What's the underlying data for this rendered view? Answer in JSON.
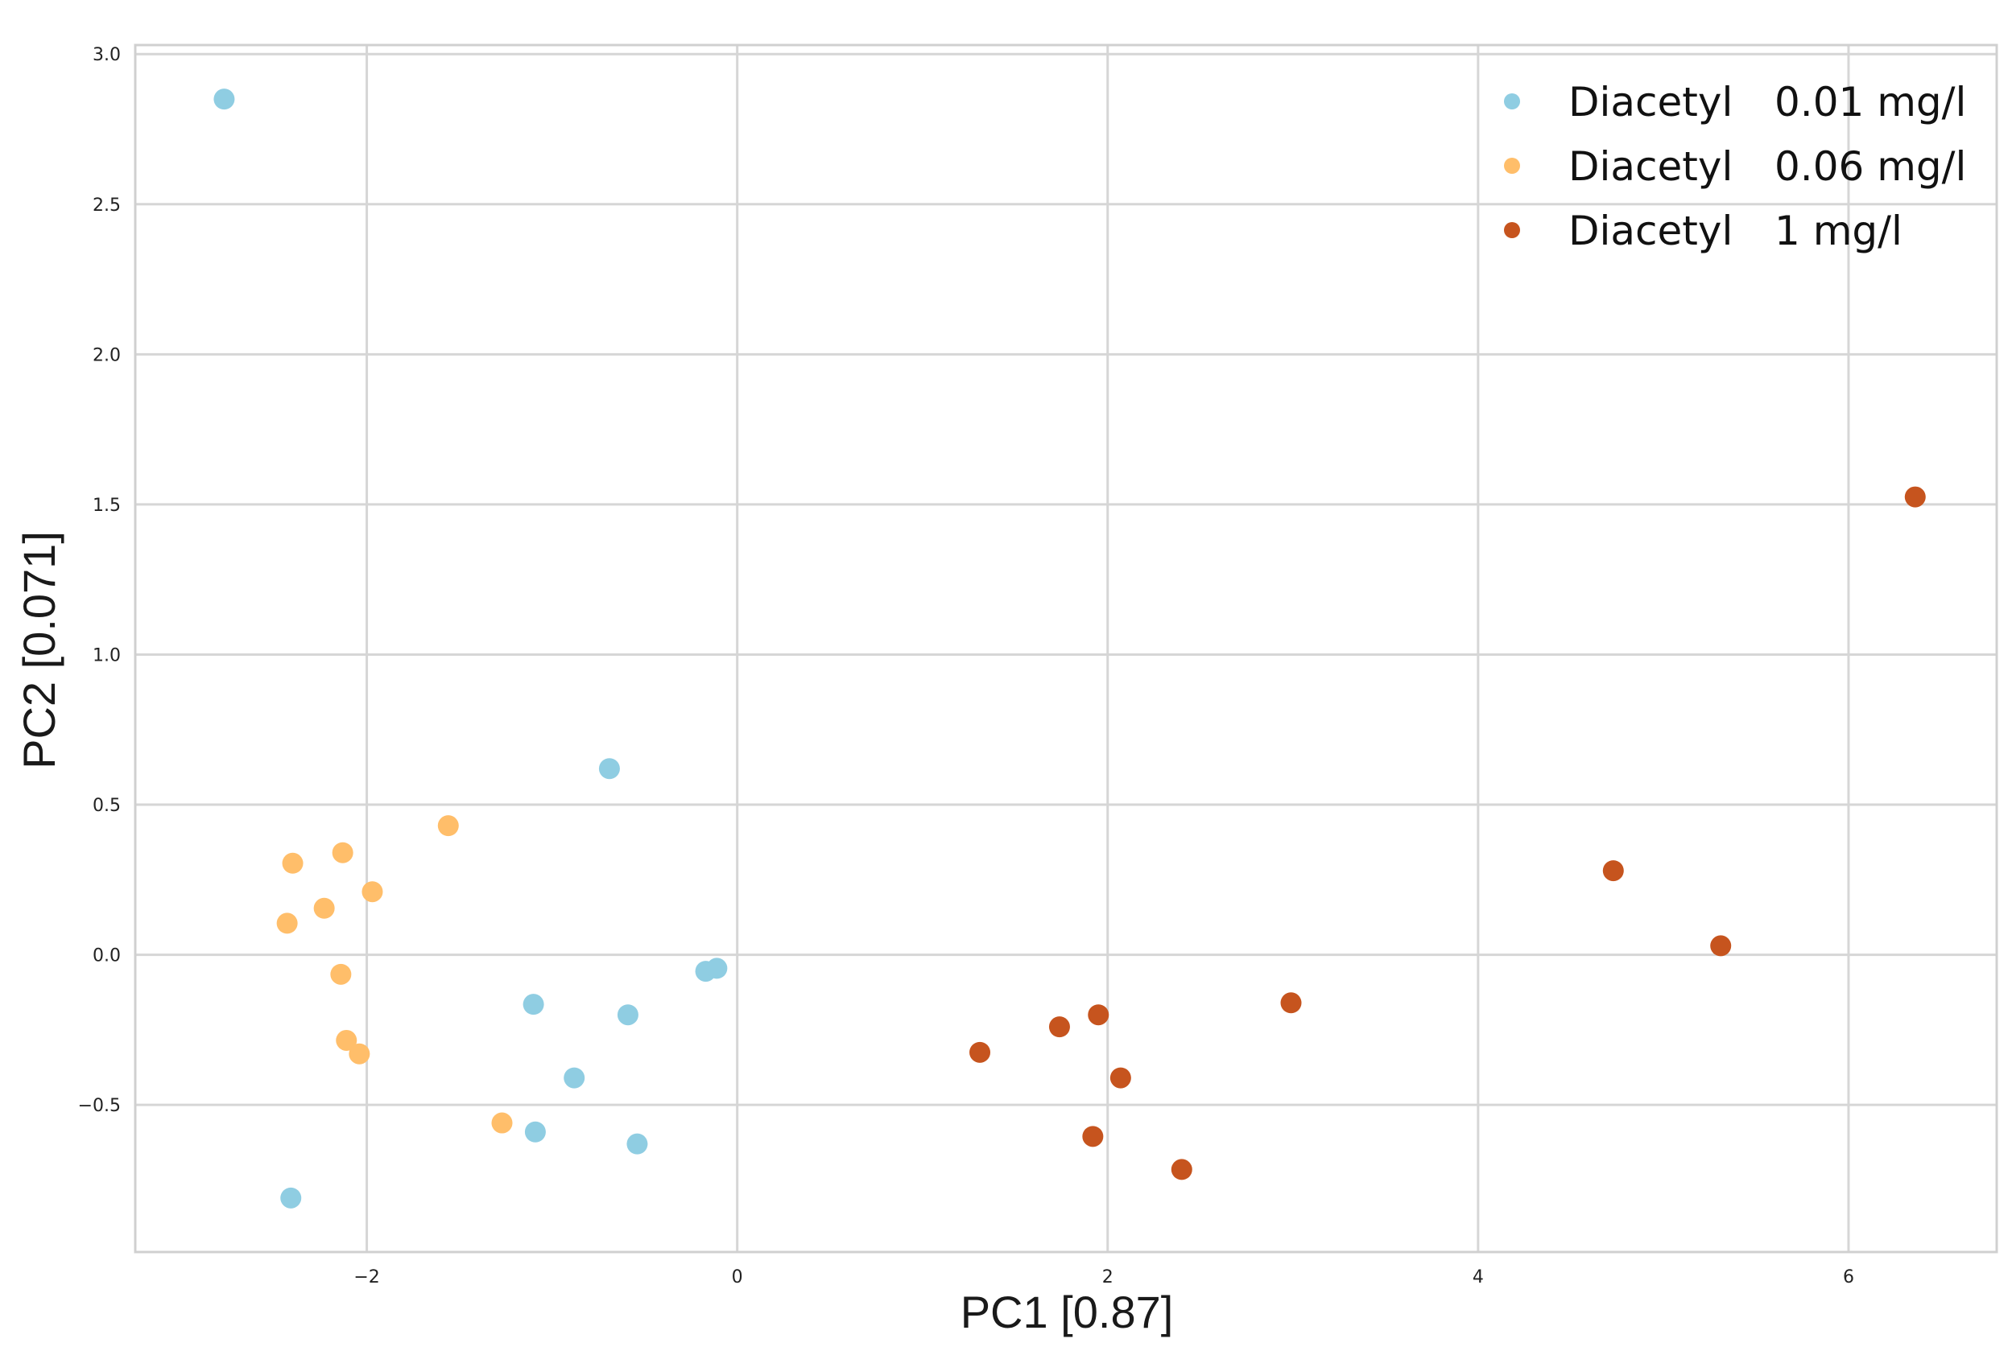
{
  "chart_data": {
    "type": "scatter",
    "title": "",
    "xlabel": "PC1 [0.87]",
    "ylabel": "PC2 [0.071]",
    "xlim": [
      -3.25,
      6.8
    ],
    "ylim": [
      -0.99,
      3.03
    ],
    "xticks": [
      -2,
      0,
      2,
      4,
      6
    ],
    "xtick_labels": [
      "−2",
      "0",
      "2",
      "4",
      "6"
    ],
    "yticks": [
      -0.5,
      0.0,
      0.5,
      1.0,
      1.5,
      2.0,
      2.5,
      3.0
    ],
    "ytick_labels": [
      "−0.5",
      "0.0",
      "0.5",
      "1.0",
      "1.5",
      "2.0",
      "2.5",
      "3.0"
    ],
    "grid": true,
    "legend_position": "top-right",
    "series": [
      {
        "name": "Diacetyl",
        "concentration": "0.01 mg/l",
        "color": "#8fcde2",
        "points": [
          [
            -2.77,
            2.85
          ],
          [
            -0.69,
            0.62
          ],
          [
            -0.17,
            -0.055
          ],
          [
            -0.11,
            -0.045
          ],
          [
            -1.1,
            -0.165
          ],
          [
            -0.59,
            -0.2
          ],
          [
            -0.88,
            -0.41
          ],
          [
            -1.09,
            -0.59
          ],
          [
            -0.54,
            -0.63
          ],
          [
            -2.41,
            -0.81
          ]
        ]
      },
      {
        "name": "Diacetyl",
        "concentration": "0.06 mg/l",
        "color": "#ffbe6a",
        "points": [
          [
            -1.56,
            0.43
          ],
          [
            -2.13,
            0.34
          ],
          [
            -2.4,
            0.305
          ],
          [
            -1.97,
            0.21
          ],
          [
            -2.23,
            0.155
          ],
          [
            -2.43,
            0.105
          ],
          [
            -2.14,
            -0.065
          ],
          [
            -2.11,
            -0.285
          ],
          [
            -2.04,
            -0.33
          ],
          [
            -1.27,
            -0.56
          ]
        ]
      },
      {
        "name": "Diacetyl",
        "concentration": "1 mg/l",
        "color": "#c6541e",
        "points": [
          [
            6.36,
            1.525
          ],
          [
            4.73,
            0.28
          ],
          [
            5.31,
            0.03
          ],
          [
            2.99,
            -0.16
          ],
          [
            1.95,
            -0.2
          ],
          [
            1.74,
            -0.24
          ],
          [
            1.31,
            -0.325
          ],
          [
            2.07,
            -0.41
          ],
          [
            1.92,
            -0.605
          ],
          [
            2.4,
            -0.715
          ]
        ]
      }
    ]
  }
}
